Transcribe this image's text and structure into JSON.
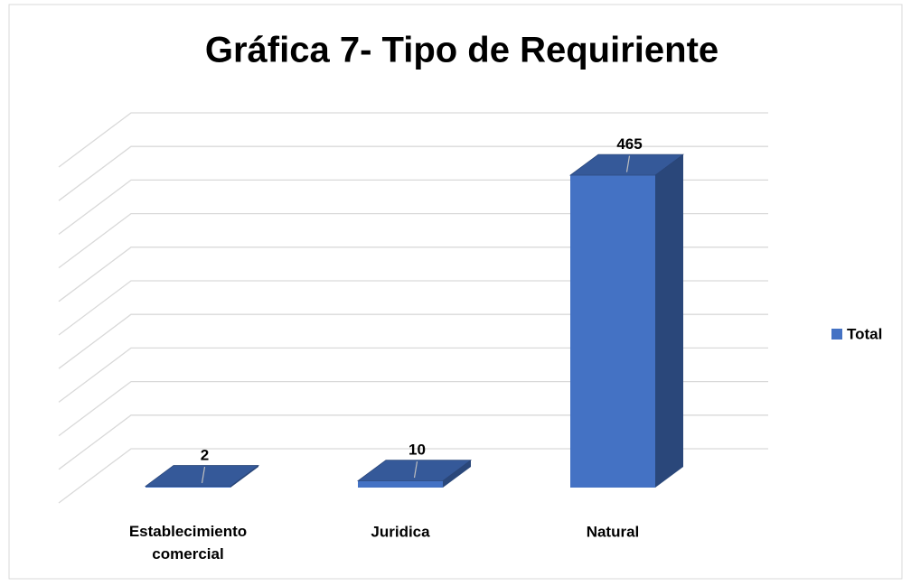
{
  "chart_data": {
    "type": "bar3d",
    "title": "Gráfica 7- Tipo de Requiriente",
    "categories": [
      "Establecimiento comercial",
      "Juridica",
      "Natural"
    ],
    "series": [
      {
        "name": "Total",
        "color": "#4472c4",
        "values": [
          2,
          10,
          465
        ]
      }
    ],
    "ylim": [
      0,
      500
    ],
    "yticks": [
      0,
      50,
      100,
      150,
      200,
      250,
      300,
      350,
      400,
      450,
      500
    ],
    "grid": true,
    "legend": "right"
  }
}
